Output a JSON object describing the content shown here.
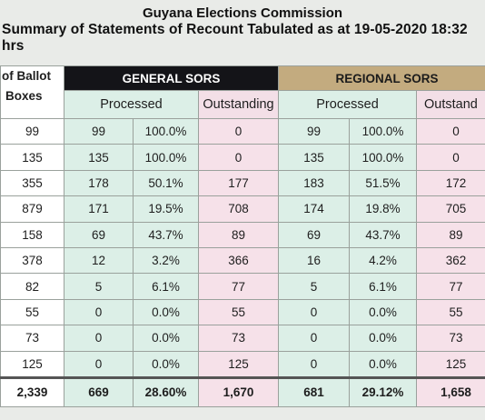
{
  "header": {
    "title": "Guyana Elections Commission",
    "subtitle": "Summary of Statements of Recount Tabulated as at 19-05-2020 18:32 hrs"
  },
  "columns": {
    "boxes_line1": "of Ballot",
    "boxes_line2": "Boxes",
    "general": "GENERAL SORS",
    "regional": "REGIONAL SORS",
    "processed": "Processed",
    "outstanding": "Outstanding",
    "outstanding_cut": "Outstand"
  },
  "rows": [
    {
      "boxes": "99",
      "g_proc": "99",
      "g_pct": "100.0%",
      "g_out": "0",
      "r_proc": "99",
      "r_pct": "100.0%",
      "r_out": "0"
    },
    {
      "boxes": "135",
      "g_proc": "135",
      "g_pct": "100.0%",
      "g_out": "0",
      "r_proc": "135",
      "r_pct": "100.0%",
      "r_out": "0"
    },
    {
      "boxes": "355",
      "g_proc": "178",
      "g_pct": "50.1%",
      "g_out": "177",
      "r_proc": "183",
      "r_pct": "51.5%",
      "r_out": "172"
    },
    {
      "boxes": "879",
      "g_proc": "171",
      "g_pct": "19.5%",
      "g_out": "708",
      "r_proc": "174",
      "r_pct": "19.8%",
      "r_out": "705"
    },
    {
      "boxes": "158",
      "g_proc": "69",
      "g_pct": "43.7%",
      "g_out": "89",
      "r_proc": "69",
      "r_pct": "43.7%",
      "r_out": "89"
    },
    {
      "boxes": "378",
      "g_proc": "12",
      "g_pct": "3.2%",
      "g_out": "366",
      "r_proc": "16",
      "r_pct": "4.2%",
      "r_out": "362"
    },
    {
      "boxes": "82",
      "g_proc": "5",
      "g_pct": "6.1%",
      "g_out": "77",
      "r_proc": "5",
      "r_pct": "6.1%",
      "r_out": "77"
    },
    {
      "boxes": "55",
      "g_proc": "0",
      "g_pct": "0.0%",
      "g_out": "55",
      "r_proc": "0",
      "r_pct": "0.0%",
      "r_out": "55"
    },
    {
      "boxes": "73",
      "g_proc": "0",
      "g_pct": "0.0%",
      "g_out": "73",
      "r_proc": "0",
      "r_pct": "0.0%",
      "r_out": "73"
    },
    {
      "boxes": "125",
      "g_proc": "0",
      "g_pct": "0.0%",
      "g_out": "125",
      "r_proc": "0",
      "r_pct": "0.0%",
      "r_out": "125"
    }
  ],
  "totals": {
    "boxes": "2,339",
    "g_proc": "669",
    "g_pct": "28.60%",
    "g_out": "1,670",
    "r_proc": "681",
    "r_pct": "29.12%",
    "r_out": "1,658"
  }
}
